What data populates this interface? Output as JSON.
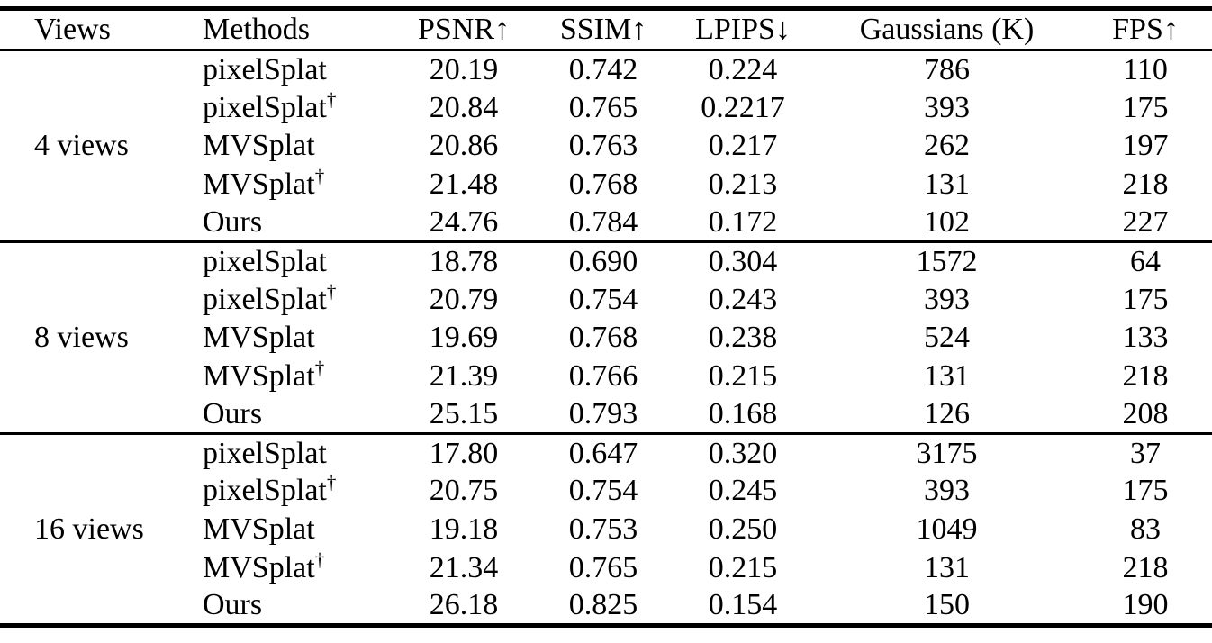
{
  "table": {
    "dagger_symbol": "†",
    "columns": [
      "Views",
      "Methods",
      "PSNR↑",
      "SSIM↑",
      "LPIPS↓",
      "Gaussians (K)",
      "FPS↑"
    ],
    "text_color": "#000000",
    "background_color": "#ffffff",
    "rule_color": "#000000",
    "groups": [
      {
        "views": "4 views",
        "rows": [
          {
            "method": "pixelSplat",
            "dagger": false,
            "psnr": "20.19",
            "ssim": "0.742",
            "lpips": "0.224",
            "gaussians": "786",
            "fps": "110"
          },
          {
            "method": "pixelSplat",
            "dagger": true,
            "psnr": "20.84",
            "ssim": "0.765",
            "lpips": "0.2217",
            "gaussians": "393",
            "fps": "175"
          },
          {
            "method": "MVSplat",
            "dagger": false,
            "psnr": "20.86",
            "ssim": "0.763",
            "lpips": "0.217",
            "gaussians": "262",
            "fps": "197"
          },
          {
            "method": "MVSplat",
            "dagger": true,
            "psnr": "21.48",
            "ssim": "0.768",
            "lpips": "0.213",
            "gaussians": "131",
            "fps": "218"
          },
          {
            "method": "Ours",
            "dagger": false,
            "psnr": "24.76",
            "ssim": "0.784",
            "lpips": "0.172",
            "gaussians": "102",
            "fps": "227"
          }
        ]
      },
      {
        "views": "8 views",
        "rows": [
          {
            "method": "pixelSplat",
            "dagger": false,
            "psnr": "18.78",
            "ssim": "0.690",
            "lpips": "0.304",
            "gaussians": "1572",
            "fps": "64"
          },
          {
            "method": "pixelSplat",
            "dagger": true,
            "psnr": "20.79",
            "ssim": "0.754",
            "lpips": "0.243",
            "gaussians": "393",
            "fps": "175"
          },
          {
            "method": "MVSplat",
            "dagger": false,
            "psnr": "19.69",
            "ssim": "0.768",
            "lpips": "0.238",
            "gaussians": "524",
            "fps": "133"
          },
          {
            "method": "MVSplat",
            "dagger": true,
            "psnr": "21.39",
            "ssim": "0.766",
            "lpips": "0.215",
            "gaussians": "131",
            "fps": "218"
          },
          {
            "method": "Ours",
            "dagger": false,
            "psnr": "25.15",
            "ssim": "0.793",
            "lpips": "0.168",
            "gaussians": "126",
            "fps": "208"
          }
        ]
      },
      {
        "views": "16 views",
        "rows": [
          {
            "method": "pixelSplat",
            "dagger": false,
            "psnr": "17.80",
            "ssim": "0.647",
            "lpips": "0.320",
            "gaussians": "3175",
            "fps": "37"
          },
          {
            "method": "pixelSplat",
            "dagger": true,
            "psnr": "20.75",
            "ssim": "0.754",
            "lpips": "0.245",
            "gaussians": "393",
            "fps": "175"
          },
          {
            "method": "MVSplat",
            "dagger": false,
            "psnr": "19.18",
            "ssim": "0.753",
            "lpips": "0.250",
            "gaussians": "1049",
            "fps": "83"
          },
          {
            "method": "MVSplat",
            "dagger": true,
            "psnr": "21.34",
            "ssim": "0.765",
            "lpips": "0.215",
            "gaussians": "131",
            "fps": "218"
          },
          {
            "method": "Ours",
            "dagger": false,
            "psnr": "26.18",
            "ssim": "0.825",
            "lpips": "0.154",
            "gaussians": "150",
            "fps": "190"
          }
        ]
      }
    ]
  }
}
